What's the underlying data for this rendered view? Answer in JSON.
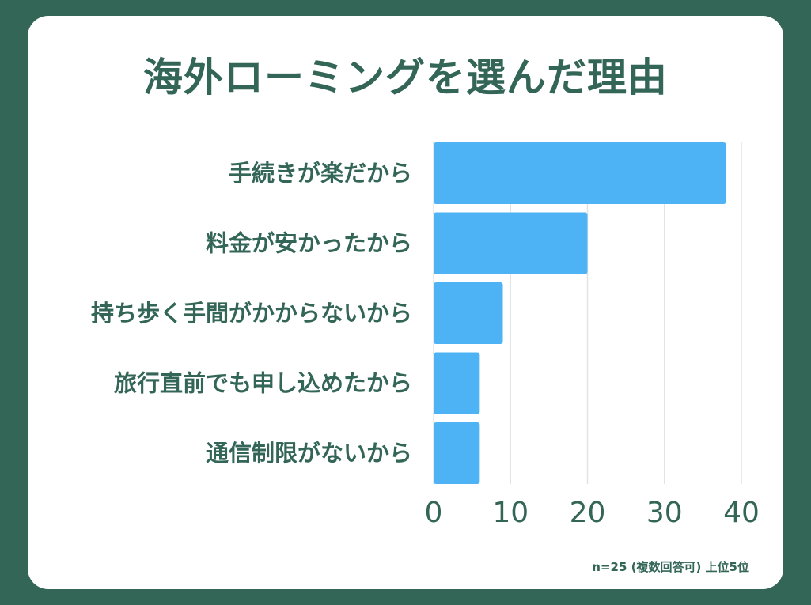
{
  "colors": {
    "background": "#336657",
    "card": "#ffffff",
    "text": "#336657",
    "bar": "#4db3f5",
    "grid": "#e3e3e3"
  },
  "chart_data": {
    "type": "bar",
    "orientation": "horizontal",
    "title": "海外ローミングを選んだ理由",
    "categories": [
      "手続きが楽だから",
      "料金が安かったから",
      "持ち歩く手間がかからないから",
      "旅行直前でも申し込めたから",
      "通信制限がないから"
    ],
    "values": [
      38,
      20,
      9,
      6,
      6
    ],
    "xlim": [
      0,
      40
    ],
    "xticks": [
      "0",
      "10",
      "20",
      "30",
      "40"
    ],
    "xlabel": "",
    "ylabel": "",
    "grid": "vertical",
    "legend": "none",
    "footnote": "n=25 (複数回答可) 上位5位"
  }
}
